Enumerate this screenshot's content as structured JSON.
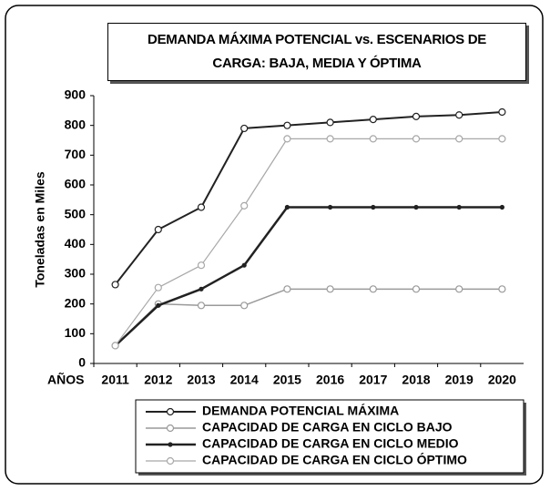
{
  "chart_data": {
    "type": "line",
    "title": "DEMANDA MÁXIMA POTENCIAL vs. ESCENARIOS DE CARGA: BAJA, MEDIA Y ÓPTIMA",
    "ylabel": "Toneladas en Miles",
    "xlabel": "AÑOS",
    "categories": [
      "2011",
      "2012",
      "2013",
      "2014",
      "2015",
      "2016",
      "2017",
      "2018",
      "2019",
      "2020"
    ],
    "series": [
      {
        "name": "DEMANDA POTENCIAL MÁXIMA",
        "color": "#222222",
        "values": [
          265,
          450,
          525,
          790,
          800,
          810,
          820,
          830,
          835,
          845
        ]
      },
      {
        "name": "CAPACIDAD DE CARGA EN CICLO BAJO",
        "color": "#9a9a9a",
        "values": [
          60,
          200,
          195,
          195,
          250,
          250,
          250,
          250,
          250,
          250
        ]
      },
      {
        "name": "CAPACIDAD DE CARGA EN CICLO MEDIO",
        "color": "#222222",
        "values": [
          60,
          195,
          250,
          330,
          525,
          525,
          525,
          525,
          525,
          525
        ]
      },
      {
        "name": "CAPACIDAD DE CARGA EN CICLO ÓPTIMO",
        "color": "#a8a8a8",
        "values": [
          60,
          255,
          330,
          530,
          755,
          755,
          755,
          755,
          755,
          755
        ]
      }
    ],
    "ylim": [
      0,
      900
    ],
    "yticks": [
      0,
      100,
      200,
      300,
      400,
      500,
      600,
      700,
      800,
      900
    ],
    "grid": false,
    "legend": "bottom"
  }
}
